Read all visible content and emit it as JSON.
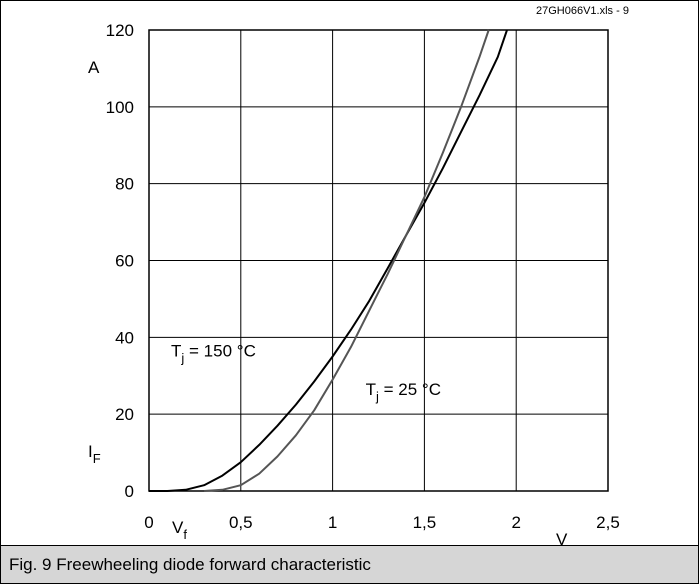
{
  "file_label": "27GH066V1.xls - 9",
  "caption": "Fig. 9 Freewheeling diode forward characteristic",
  "chart_data": {
    "type": "line",
    "title": "",
    "xlabel": "V",
    "xlabel_prefix": "V",
    "xlabel_sub": "f",
    "ylabel": "A",
    "ylabel_prefix": "I",
    "ylabel_sub": "F",
    "xlim": [
      0,
      2.5
    ],
    "ylim": [
      0,
      120
    ],
    "grid": true,
    "x_ticks": [
      {
        "value": 0,
        "label": "0"
      },
      {
        "value": 0.5,
        "label": "0,5"
      },
      {
        "value": 1,
        "label": "1"
      },
      {
        "value": 1.5,
        "label": "1,5"
      },
      {
        "value": 2,
        "label": "2"
      },
      {
        "value": 2.5,
        "label": "2,5"
      }
    ],
    "y_ticks": [
      {
        "value": 0,
        "label": "0"
      },
      {
        "value": 20,
        "label": "20"
      },
      {
        "value": 40,
        "label": "40"
      },
      {
        "value": 60,
        "label": "60"
      },
      {
        "value": 80,
        "label": "80"
      },
      {
        "value": 100,
        "label": "100"
      },
      {
        "value": 120,
        "label": "120"
      }
    ],
    "series": [
      {
        "name": "Tj = 150 °C",
        "label_main": "T",
        "label_sub": "j",
        "label_rest": " = 150 °C",
        "color": "#000000",
        "label_at": [
          0.12,
          35
        ],
        "x": [
          0,
          0.1,
          0.2,
          0.3,
          0.4,
          0.5,
          0.6,
          0.7,
          0.8,
          0.9,
          1.0,
          1.1,
          1.2,
          1.3,
          1.4,
          1.5,
          1.6,
          1.7,
          1.8,
          1.9,
          1.95
        ],
        "y": [
          0,
          0,
          0.3,
          1.5,
          4,
          7.5,
          12,
          17,
          22.5,
          28.5,
          35,
          42,
          49.5,
          58,
          66.5,
          75,
          84,
          93.5,
          103,
          113,
          120
        ]
      },
      {
        "name": "Tj = 25 °C",
        "label_main": "T",
        "label_sub": "j",
        "label_rest": " = 25 °C",
        "color": "#555555",
        "label_at": [
          1.18,
          25
        ],
        "x": [
          0.3,
          0.4,
          0.5,
          0.6,
          0.7,
          0.8,
          0.9,
          1.0,
          1.1,
          1.2,
          1.3,
          1.4,
          1.5,
          1.6,
          1.7,
          1.8,
          1.85
        ],
        "y": [
          0,
          0.3,
          1.5,
          4.5,
          9,
          14.5,
          21,
          29,
          37.5,
          47,
          56.5,
          66.5,
          76.5,
          88,
          100,
          113,
          120
        ]
      }
    ]
  }
}
